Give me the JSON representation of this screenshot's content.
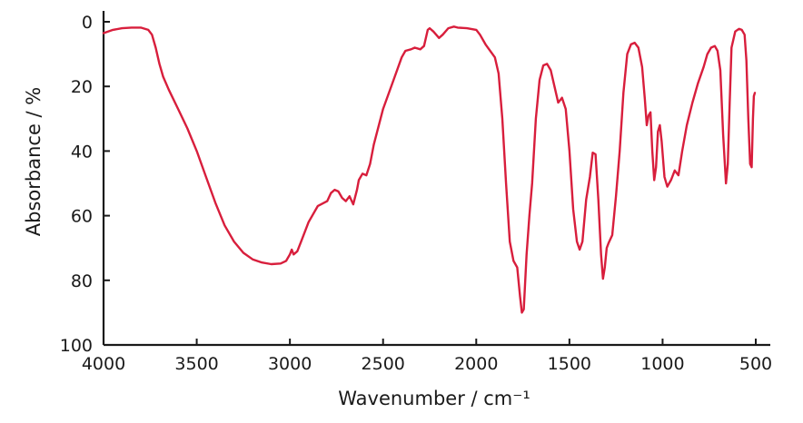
{
  "chart_data": {
    "type": "line",
    "title": "",
    "xlabel": "Wavenumber / cm⁻¹",
    "ylabel": "Absorbance / %",
    "xlim": [
      4000,
      500
    ],
    "ylim": [
      0,
      100
    ],
    "x_reversed": true,
    "y_inverted": true,
    "grid": false,
    "legend": "none",
    "x_ticks": [
      4000,
      3500,
      3000,
      2500,
      2000,
      1500,
      1000,
      500
    ],
    "y_ticks": [
      0,
      20,
      40,
      60,
      80,
      100
    ],
    "series": [
      {
        "color": "#d81e3c",
        "points": [
          [
            4000,
            3.5
          ],
          [
            3950,
            2.5
          ],
          [
            3900,
            2
          ],
          [
            3850,
            1.8
          ],
          [
            3800,
            1.8
          ],
          [
            3760,
            2.5
          ],
          [
            3740,
            4
          ],
          [
            3720,
            8
          ],
          [
            3700,
            13
          ],
          [
            3680,
            17
          ],
          [
            3650,
            21
          ],
          [
            3600,
            27
          ],
          [
            3550,
            33
          ],
          [
            3500,
            40
          ],
          [
            3450,
            48
          ],
          [
            3400,
            56
          ],
          [
            3350,
            63
          ],
          [
            3300,
            68
          ],
          [
            3250,
            71.5
          ],
          [
            3200,
            73.5
          ],
          [
            3150,
            74.5
          ],
          [
            3100,
            75
          ],
          [
            3050,
            74.8
          ],
          [
            3020,
            74
          ],
          [
            3000,
            72
          ],
          [
            2990,
            70.5
          ],
          [
            2980,
            72
          ],
          [
            2960,
            71
          ],
          [
            2940,
            68
          ],
          [
            2900,
            62
          ],
          [
            2850,
            57
          ],
          [
            2800,
            55.5
          ],
          [
            2780,
            53
          ],
          [
            2760,
            52
          ],
          [
            2740,
            52.5
          ],
          [
            2720,
            54.5
          ],
          [
            2700,
            55.5
          ],
          [
            2680,
            54
          ],
          [
            2660,
            56.5
          ],
          [
            2640,
            52
          ],
          [
            2630,
            49
          ],
          [
            2610,
            47
          ],
          [
            2590,
            47.5
          ],
          [
            2570,
            44
          ],
          [
            2550,
            38
          ],
          [
            2500,
            27
          ],
          [
            2450,
            19
          ],
          [
            2400,
            11
          ],
          [
            2380,
            9
          ],
          [
            2350,
            8.5
          ],
          [
            2330,
            8
          ],
          [
            2300,
            8.5
          ],
          [
            2280,
            7.5
          ],
          [
            2260,
            2.5
          ],
          [
            2250,
            2
          ],
          [
            2230,
            3
          ],
          [
            2200,
            5
          ],
          [
            2180,
            4
          ],
          [
            2150,
            2
          ],
          [
            2120,
            1.5
          ],
          [
            2100,
            1.8
          ],
          [
            2050,
            2
          ],
          [
            2000,
            2.5
          ],
          [
            1980,
            4
          ],
          [
            1950,
            7
          ],
          [
            1900,
            11
          ],
          [
            1880,
            16
          ],
          [
            1860,
            30
          ],
          [
            1840,
            50
          ],
          [
            1820,
            68
          ],
          [
            1800,
            74
          ],
          [
            1780,
            76
          ],
          [
            1765,
            85
          ],
          [
            1755,
            90
          ],
          [
            1745,
            89
          ],
          [
            1730,
            72
          ],
          [
            1715,
            60
          ],
          [
            1700,
            50
          ],
          [
            1680,
            30
          ],
          [
            1660,
            18
          ],
          [
            1640,
            13.5
          ],
          [
            1620,
            13
          ],
          [
            1600,
            15
          ],
          [
            1580,
            20
          ],
          [
            1560,
            25
          ],
          [
            1540,
            23.5
          ],
          [
            1520,
            27
          ],
          [
            1500,
            40
          ],
          [
            1480,
            58
          ],
          [
            1460,
            68
          ],
          [
            1445,
            70.5
          ],
          [
            1430,
            68
          ],
          [
            1410,
            55
          ],
          [
            1390,
            48
          ],
          [
            1375,
            40.5
          ],
          [
            1360,
            41
          ],
          [
            1345,
            55
          ],
          [
            1330,
            72
          ],
          [
            1320,
            79.5
          ],
          [
            1310,
            76
          ],
          [
            1300,
            70
          ],
          [
            1290,
            68.5
          ],
          [
            1270,
            66
          ],
          [
            1250,
            54
          ],
          [
            1230,
            40
          ],
          [
            1210,
            22
          ],
          [
            1190,
            10
          ],
          [
            1170,
            7
          ],
          [
            1150,
            6.5
          ],
          [
            1130,
            8
          ],
          [
            1110,
            14
          ],
          [
            1095,
            24
          ],
          [
            1085,
            32
          ],
          [
            1075,
            29
          ],
          [
            1065,
            28
          ],
          [
            1055,
            40
          ],
          [
            1045,
            49
          ],
          [
            1035,
            45
          ],
          [
            1025,
            34
          ],
          [
            1015,
            32
          ],
          [
            1005,
            37
          ],
          [
            990,
            48
          ],
          [
            975,
            51
          ],
          [
            955,
            49
          ],
          [
            935,
            46
          ],
          [
            915,
            47.5
          ],
          [
            895,
            40
          ],
          [
            870,
            32
          ],
          [
            840,
            25
          ],
          [
            810,
            19
          ],
          [
            780,
            14
          ],
          [
            760,
            10
          ],
          [
            740,
            8
          ],
          [
            720,
            7.5
          ],
          [
            705,
            9
          ],
          [
            690,
            15
          ],
          [
            675,
            35
          ],
          [
            660,
            50
          ],
          [
            650,
            44
          ],
          [
            640,
            25
          ],
          [
            630,
            8
          ],
          [
            610,
            3
          ],
          [
            590,
            2.2
          ],
          [
            575,
            2.5
          ],
          [
            560,
            4
          ],
          [
            550,
            12
          ],
          [
            540,
            30
          ],
          [
            530,
            44
          ],
          [
            522,
            45
          ],
          [
            515,
            30
          ],
          [
            510,
            23
          ],
          [
            505,
            22
          ]
        ]
      }
    ]
  }
}
